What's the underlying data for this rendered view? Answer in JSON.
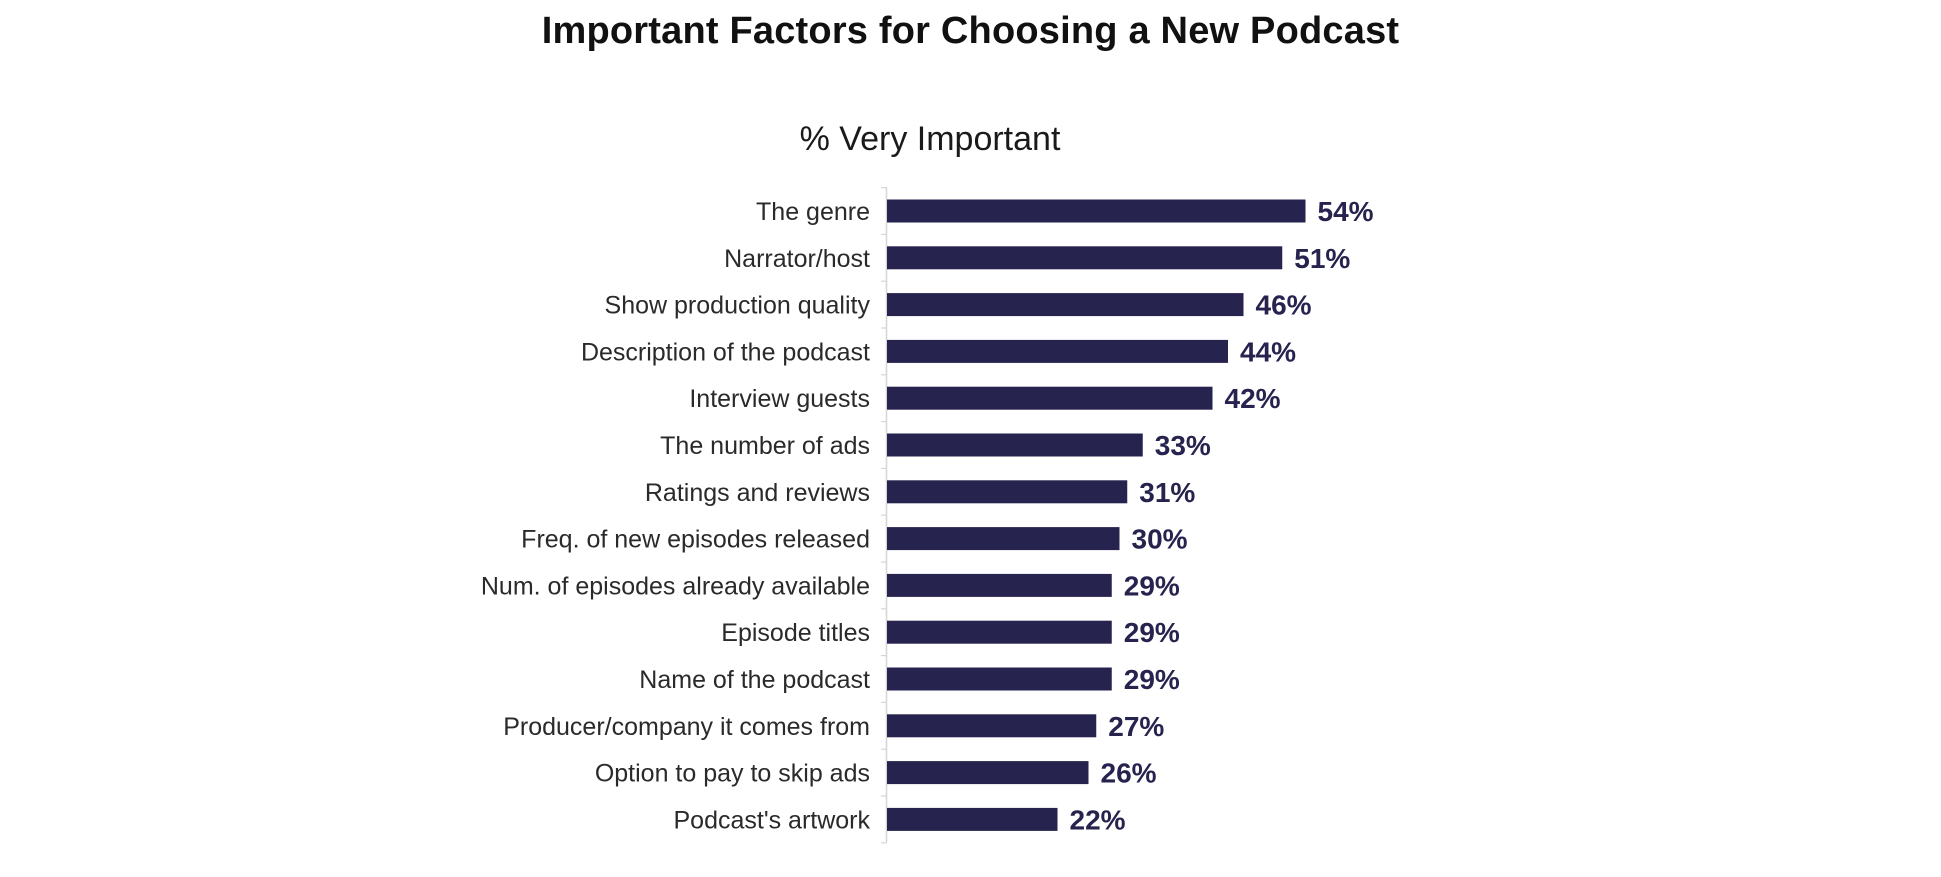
{
  "chart_data": {
    "type": "bar",
    "orientation": "horizontal",
    "title": "Important Factors for Choosing a New Podcast",
    "subtitle": "% Very Important",
    "categories": [
      "The genre",
      "Narrator/host",
      "Show production quality",
      "Description of the podcast",
      "Interview guests",
      "The number of ads",
      "Ratings and reviews",
      "Freq. of new episodes released",
      "Num. of episodes already available",
      "Episode titles",
      "Name of the podcast",
      "Producer/company it comes from",
      "Option to pay to skip ads",
      "Podcast's artwork"
    ],
    "values": [
      54,
      51,
      46,
      44,
      42,
      33,
      31,
      30,
      29,
      29,
      29,
      27,
      26,
      22
    ],
    "value_labels": [
      "54%",
      "51%",
      "46%",
      "44%",
      "42%",
      "33%",
      "31%",
      "30%",
      "29%",
      "29%",
      "29%",
      "27%",
      "26%",
      "22%"
    ],
    "xlim": [
      0,
      100
    ],
    "grid": false,
    "legend": "none",
    "bar_color": "#27234f",
    "label_color": "#27234f",
    "axis_color": "#d6d6d6"
  }
}
